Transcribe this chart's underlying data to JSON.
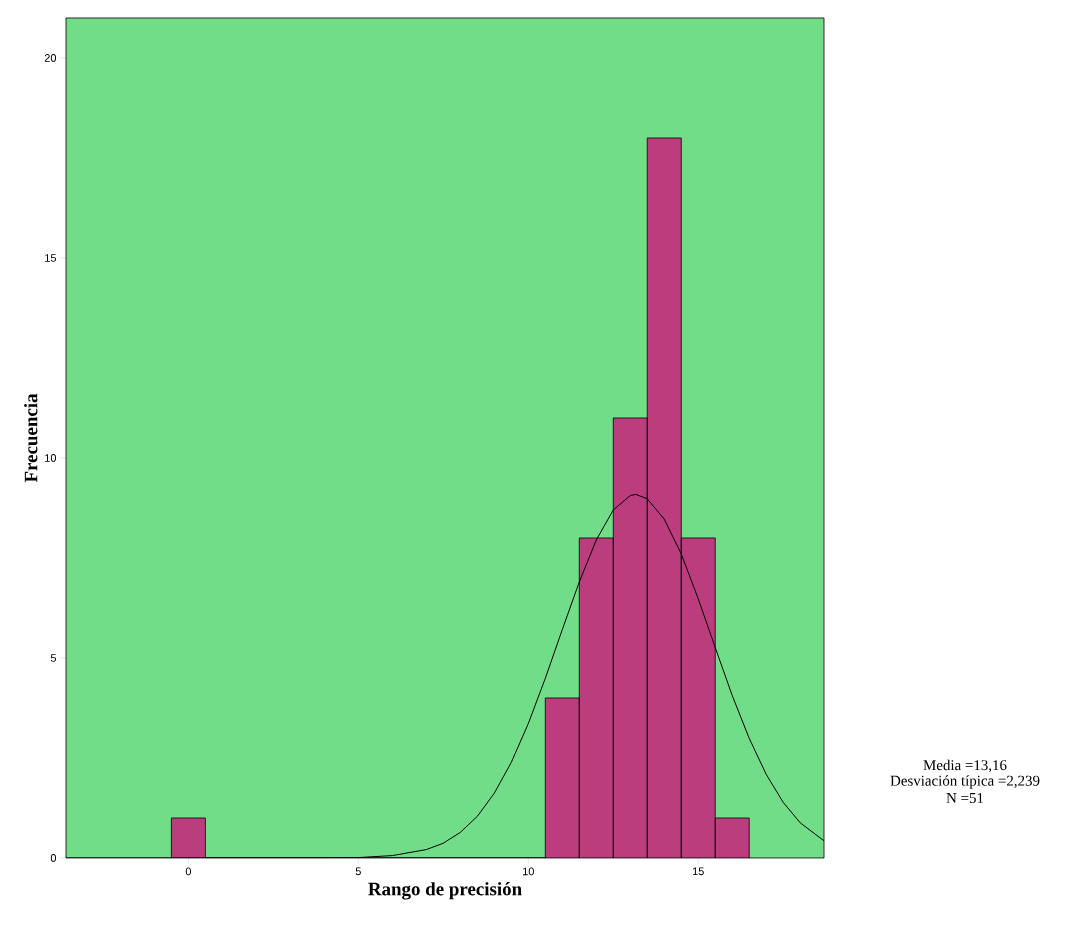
{
  "chart_data": {
    "type": "histogram",
    "xlabel": "Rango de precisión",
    "ylabel": "Frecuencia",
    "series": [
      {
        "color": "#bb3d7e",
        "bins": [
          -0.5,
          0.5,
          1.5,
          2.5,
          3.5,
          4.5,
          5.5,
          6.5,
          7.5,
          8.5,
          9.5,
          10.5,
          11.5,
          12.5,
          13.5,
          14.5,
          15.5,
          16.5
        ],
        "values": [
          1,
          0,
          0,
          0,
          0,
          0,
          0,
          0,
          0,
          0,
          0,
          4,
          8,
          11,
          18,
          8,
          1
        ]
      },
      {
        "type": "line",
        "color": "#000000",
        "x": [
          -3.6,
          0,
          4,
          5,
          6,
          7,
          7.5,
          8,
          8.5,
          9,
          9.5,
          10,
          10.5,
          11,
          11.5,
          12,
          12.5,
          13,
          13.16,
          13.5,
          14,
          14.5,
          15,
          15.5,
          16,
          16.5,
          17,
          17.5,
          18,
          18.7
        ],
        "values": [
          0,
          0,
          0,
          0.01,
          0.06,
          0.21,
          0.37,
          0.64,
          1.04,
          1.62,
          2.39,
          3.36,
          4.49,
          5.71,
          6.9,
          7.95,
          8.7,
          9.06,
          9.09,
          8.98,
          8.47,
          7.6,
          6.48,
          5.26,
          4.06,
          2.99,
          2.09,
          1.39,
          0.88,
          0.43
        ]
      }
    ],
    "xlim": [
      -3.6,
      18.7
    ],
    "ylim": [
      0,
      21
    ],
    "xticks": [
      0,
      5,
      10,
      15
    ],
    "yticks": [
      0,
      5,
      10,
      15,
      20
    ],
    "grid": false,
    "marker": "none",
    "line_style": "solid",
    "annotations": [
      "Media =13,16",
      "Desviación típica =2,239",
      "N =51"
    ]
  }
}
